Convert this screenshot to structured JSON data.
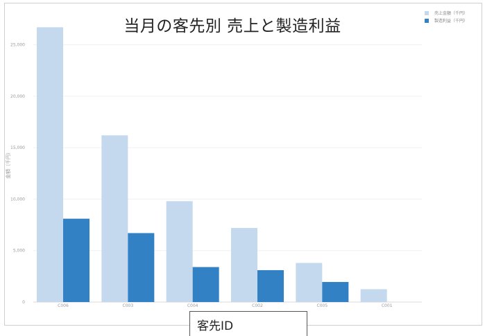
{
  "chart_data": {
    "type": "bar",
    "title": "当月の客先別  売上と製造利益",
    "xlabel": "客先ID",
    "ylabel": "金額（千円）",
    "categories": [
      "C006",
      "C003",
      "C004",
      "C002",
      "C005",
      "C001"
    ],
    "series": [
      {
        "name": "売上金額（千円）",
        "color": "#c5d9ee",
        "values": [
          26700,
          16200,
          9800,
          7200,
          3800,
          1250
        ]
      },
      {
        "name": "製造利益（千円）",
        "color": "#3281c4",
        "values": [
          8100,
          6700,
          3400,
          3100,
          1950,
          0
        ]
      }
    ],
    "yticks": [
      "0",
      "5,000",
      "10,000",
      "15,000",
      "20,000",
      "25,000"
    ],
    "ytick_values": [
      0,
      5000,
      10000,
      15000,
      20000,
      25000
    ],
    "ylim": [
      0,
      28000
    ],
    "grid": true,
    "legend_position": "top-right"
  }
}
